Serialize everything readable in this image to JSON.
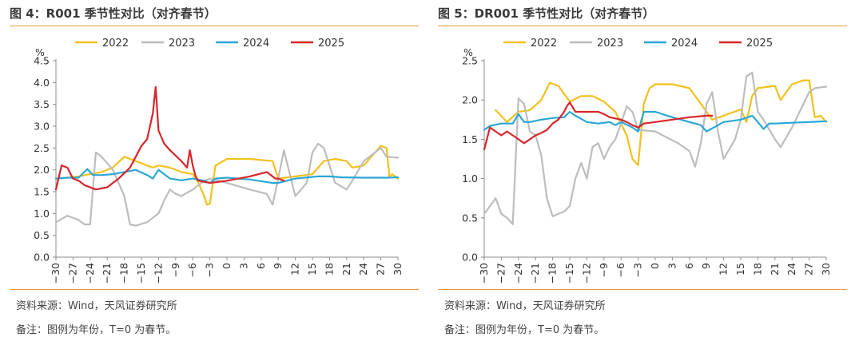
{
  "panels": [
    {
      "fig_title": "图 4：R001 季节性对比（对齐春节）",
      "source": "资料来源：Wind，天风证券研究所",
      "remark": "备注：图例为年份，T=0 为春节。"
    },
    {
      "fig_title": "图 5：DR001 季节性对比（对齐春节）",
      "source": "资料来源：Wind，天风证券研究所",
      "remark": "备注：图例为年份，T=0 为春节。"
    }
  ],
  "colors": {
    "accent_rule": "#e89a3c",
    "2022": "#f2c11c",
    "2023": "#bdbdbd",
    "2024": "#2aa7d6",
    "2025": "#d7262a"
  },
  "chart_data": [
    {
      "type": "line",
      "title": "R001 季节性对比（对齐春节）",
      "ylabel": "%",
      "xlabel": "",
      "xlim": [
        -30,
        30
      ],
      "ylim": [
        0,
        4.5
      ],
      "y_ticks": [
        0.0,
        0.5,
        1.0,
        1.5,
        2.0,
        2.5,
        3.0,
        3.5,
        4.0,
        4.5
      ],
      "y_tick_labels": [
        "0.0",
        "0.5",
        "1.0",
        "1.5",
        "2.0",
        "2.5",
        "3.0",
        "3.5",
        "4.0",
        "4.5"
      ],
      "x_ticks": [
        -30,
        -27,
        -24,
        -21,
        -18,
        -15,
        -12,
        -9,
        -6,
        -3,
        0,
        3,
        6,
        9,
        12,
        15,
        18,
        21,
        24,
        27,
        30
      ],
      "x_tick_labels": [
        "−30",
        "−27",
        "−24",
        "−21",
        "−18",
        "−15",
        "−12",
        "−9",
        "−6",
        "−3",
        "0",
        "3",
        "6",
        "9",
        "12",
        "15",
        "18",
        "21",
        "24",
        "27",
        "30"
      ],
      "legend_position": "top",
      "series": [
        {
          "name": "2022",
          "color": "#f2c11c",
          "x": [
            -30,
            -28,
            -26,
            -24,
            -22,
            -20,
            -19,
            -18,
            -16,
            -14,
            -13,
            -12,
            -10,
            -8,
            -6,
            -5,
            -4,
            -3.5,
            -3,
            -2,
            0,
            4,
            8,
            9,
            12,
            15,
            17,
            19,
            21,
            22,
            24,
            26,
            27,
            28,
            28.5,
            29,
            30
          ],
          "y": [
            1.8,
            1.82,
            1.85,
            1.9,
            1.95,
            2.05,
            2.18,
            2.3,
            2.2,
            2.1,
            2.05,
            2.1,
            2.05,
            1.95,
            1.9,
            1.7,
            1.4,
            1.2,
            1.22,
            2.1,
            2.25,
            2.25,
            2.2,
            1.8,
            1.85,
            1.9,
            2.2,
            2.25,
            2.2,
            2.05,
            2.1,
            2.4,
            2.55,
            2.5,
            1.85,
            1.9,
            1.8
          ]
        },
        {
          "name": "2023",
          "color": "#bdbdbd",
          "x": [
            -30,
            -28,
            -26,
            -25,
            -24,
            -23,
            -22,
            -20,
            -18,
            -17,
            -16,
            -14,
            -12,
            -11,
            -10,
            -9,
            -8,
            -6,
            -5,
            -4,
            -3,
            0,
            4,
            7,
            8,
            9,
            10,
            12,
            14,
            15,
            16,
            17,
            19,
            21,
            22,
            24,
            26,
            27,
            28,
            30
          ],
          "y": [
            0.8,
            0.95,
            0.85,
            0.75,
            0.75,
            2.4,
            2.3,
            2.0,
            1.4,
            0.75,
            0.72,
            0.8,
            1.0,
            1.3,
            1.55,
            1.45,
            1.4,
            1.55,
            1.65,
            1.75,
            1.8,
            1.7,
            1.55,
            1.45,
            1.2,
            1.8,
            2.45,
            1.4,
            1.7,
            2.4,
            2.6,
            2.5,
            1.7,
            1.55,
            1.75,
            2.2,
            2.4,
            2.5,
            2.3,
            2.28
          ]
        },
        {
          "name": "2024",
          "color": "#2aa7d6",
          "x": [
            -30,
            -28,
            -26,
            -24.5,
            -23.5,
            -22,
            -20,
            -18,
            -16,
            -14,
            -13,
            -12,
            -10,
            -8,
            -6,
            -4,
            -3,
            -2,
            0,
            4,
            8,
            9,
            12,
            16,
            18,
            20,
            24,
            28,
            30
          ],
          "y": [
            1.8,
            1.82,
            1.82,
            2.02,
            1.88,
            1.88,
            1.9,
            1.95,
            2.0,
            1.88,
            1.8,
            2.0,
            1.8,
            1.76,
            1.8,
            1.75,
            1.7,
            1.8,
            1.82,
            1.78,
            1.7,
            1.7,
            1.8,
            1.85,
            1.85,
            1.83,
            1.82,
            1.82,
            1.83
          ]
        },
        {
          "name": "2025",
          "color": "#d7262a",
          "x": [
            -30,
            -29,
            -28,
            -27,
            -26,
            -25,
            -23,
            -21,
            -19,
            -17,
            -16,
            -15,
            -14,
            -13,
            -12.5,
            -12,
            -11,
            -10,
            -8,
            -7,
            -6.5,
            -6,
            -5.5,
            -5,
            -3,
            0,
            4,
            7,
            8,
            8.5,
            9,
            10
          ],
          "y": [
            1.55,
            2.1,
            2.05,
            1.8,
            1.75,
            1.65,
            1.55,
            1.6,
            1.8,
            2.05,
            2.3,
            2.55,
            2.7,
            3.3,
            3.9,
            2.9,
            2.6,
            2.45,
            2.2,
            2.05,
            2.45,
            2.1,
            1.85,
            1.75,
            1.7,
            1.75,
            1.85,
            1.95,
            1.85,
            1.8,
            1.8,
            1.75
          ]
        }
      ]
    },
    {
      "type": "line",
      "title": "DR001 季节性对比（对齐春节）",
      "ylabel": "%",
      "xlabel": "",
      "xlim": [
        -30,
        30
      ],
      "ylim": [
        0,
        2.5
      ],
      "y_ticks": [
        0.0,
        0.5,
        1.0,
        1.5,
        2.0,
        2.5
      ],
      "y_tick_labels": [
        "0.0",
        "0.5",
        "1.0",
        "1.5",
        "2.0",
        "2.5"
      ],
      "x_ticks": [
        -30,
        -27,
        -24,
        -21,
        -18,
        -15,
        -12,
        -9,
        -6,
        -3,
        0,
        3,
        6,
        9,
        12,
        15,
        18,
        21,
        24,
        27,
        30
      ],
      "x_tick_labels": [
        "−30",
        "−27",
        "−24",
        "−21",
        "−18",
        "−15",
        "−12",
        "−9",
        "−6",
        "−3",
        "0",
        "3",
        "6",
        "9",
        "12",
        "15",
        "18",
        "21",
        "24",
        "27",
        "30"
      ],
      "legend_position": "top",
      "series": [
        {
          "name": "2022",
          "color": "#f2c11c",
          "x": [
            -28,
            -26,
            -24,
            -22,
            -20,
            -18.5,
            -17,
            -15,
            -13,
            -11,
            -9,
            -7,
            -5,
            -4,
            -3,
            -2,
            -1,
            0,
            3,
            6,
            8,
            9,
            10,
            12,
            15,
            16,
            17,
            18,
            21,
            22,
            24,
            26,
            27,
            28,
            29,
            30
          ],
          "y": [
            1.87,
            1.72,
            1.85,
            1.87,
            2.0,
            2.22,
            2.18,
            1.98,
            2.05,
            2.05,
            1.98,
            1.85,
            1.55,
            1.25,
            1.17,
            1.95,
            2.15,
            2.2,
            2.2,
            2.15,
            1.95,
            1.85,
            1.75,
            1.8,
            1.88,
            1.72,
            2.05,
            2.15,
            2.18,
            2.0,
            2.2,
            2.25,
            2.25,
            1.78,
            1.8,
            1.72
          ]
        },
        {
          "name": "2023",
          "color": "#bdbdbd",
          "x": [
            -30,
            -28,
            -27,
            -26,
            -25,
            -24,
            -23,
            -22,
            -21,
            -20,
            -19,
            -18,
            -17,
            -16,
            -15,
            -14,
            -13,
            -12,
            -11,
            -10,
            -9,
            -8,
            -7,
            -6,
            -5,
            -4,
            -3,
            0,
            4,
            6,
            7,
            8,
            9,
            10,
            11,
            12,
            14,
            15,
            16,
            17,
            18,
            19,
            21,
            22,
            24,
            26,
            27,
            28,
            30
          ],
          "y": [
            0.55,
            0.75,
            0.55,
            0.5,
            0.42,
            2.02,
            1.95,
            1.6,
            1.55,
            1.3,
            0.75,
            0.52,
            0.55,
            0.58,
            0.65,
            1.0,
            1.2,
            1.0,
            1.4,
            1.45,
            1.25,
            1.4,
            1.5,
            1.7,
            1.92,
            1.85,
            1.62,
            1.6,
            1.45,
            1.35,
            1.15,
            1.45,
            1.95,
            2.1,
            1.6,
            1.25,
            1.5,
            1.75,
            2.3,
            2.35,
            1.85,
            1.75,
            1.5,
            1.4,
            1.65,
            1.95,
            2.1,
            2.15,
            2.17
          ]
        },
        {
          "name": "2024",
          "color": "#2aa7d6",
          "x": [
            -30,
            -29,
            -27,
            -25,
            -24,
            -23,
            -22,
            -20,
            -18,
            -16,
            -15,
            -14,
            -13,
            -12,
            -10,
            -8,
            -7,
            -6,
            -4,
            -3,
            -2,
            0,
            3,
            6,
            8,
            9,
            12,
            15,
            17,
            18,
            19,
            20,
            21,
            24,
            27,
            30
          ],
          "y": [
            1.62,
            1.67,
            1.7,
            1.7,
            1.82,
            1.72,
            1.72,
            1.75,
            1.77,
            1.78,
            1.85,
            1.8,
            1.76,
            1.72,
            1.7,
            1.72,
            1.68,
            1.72,
            1.65,
            1.6,
            1.85,
            1.85,
            1.78,
            1.72,
            1.68,
            1.6,
            1.72,
            1.75,
            1.8,
            1.72,
            1.63,
            1.7,
            1.7,
            1.71,
            1.72,
            1.73
          ]
        },
        {
          "name": "2025",
          "color": "#d7262a",
          "x": [
            -30,
            -29,
            -28,
            -27,
            -26,
            -25,
            -24,
            -23,
            -22,
            -21,
            -20,
            -19,
            -18,
            -17,
            -16,
            -15.5,
            -15,
            -14,
            -12,
            -10,
            -9,
            -8,
            -6,
            -5,
            -4,
            -3,
            -2,
            0,
            3,
            6,
            9,
            10
          ],
          "y": [
            1.37,
            1.65,
            1.6,
            1.55,
            1.6,
            1.55,
            1.5,
            1.45,
            1.5,
            1.55,
            1.58,
            1.62,
            1.7,
            1.75,
            1.85,
            1.92,
            1.97,
            1.85,
            1.85,
            1.85,
            1.82,
            1.78,
            1.75,
            1.72,
            1.68,
            1.65,
            1.7,
            1.72,
            1.75,
            1.78,
            1.8,
            1.8
          ]
        }
      ]
    }
  ]
}
